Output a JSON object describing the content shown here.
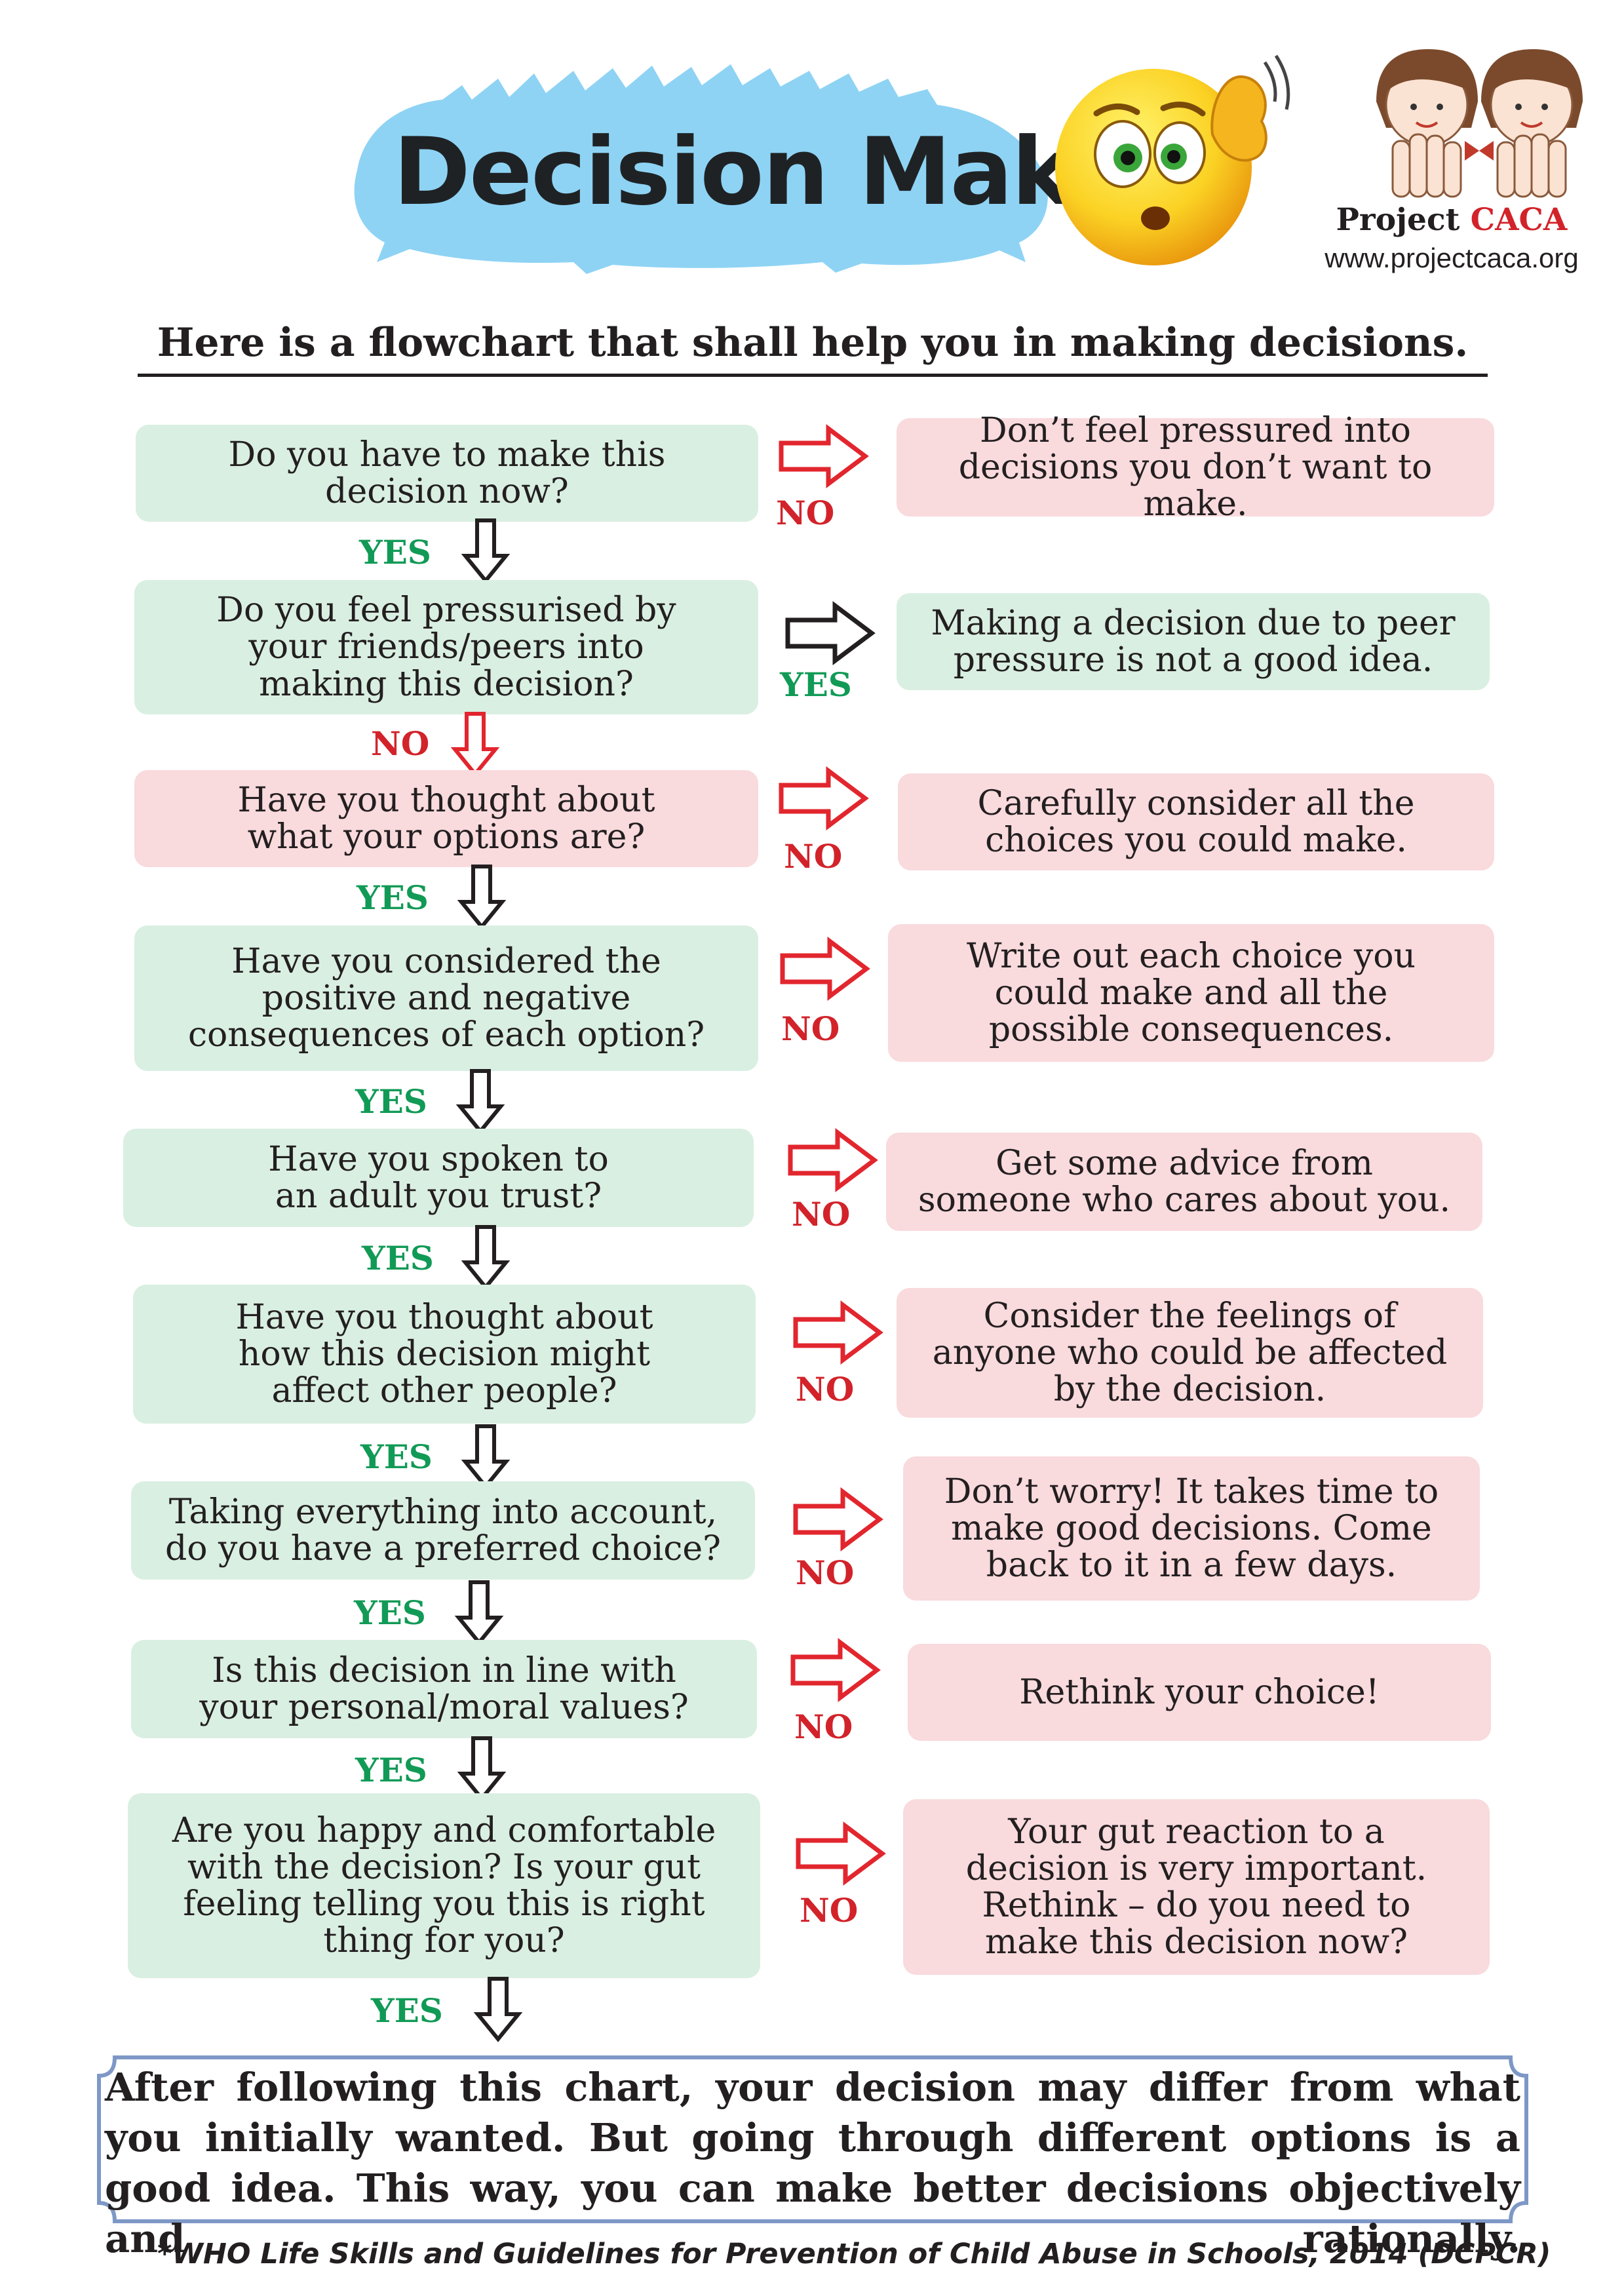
{
  "header": {
    "title": "Decision Making",
    "subtitle": "Here is a flowchart that shall help you in making decisions.",
    "logo": {
      "name_prefix": "Project ",
      "name_highlight": "CACA",
      "url": "www.projectcaca.org"
    },
    "icons": [
      "confused-emoji-icon",
      "project-caca-logo-icon"
    ]
  },
  "colors": {
    "green_box": "#d9efe2",
    "pink_box": "#f9dadd",
    "yes_label": "#119a56",
    "no_label": "#d2232a",
    "arrow_red": "#e2262e",
    "arrow_black": "#231f20",
    "splash_blue": "#8ed3f4",
    "frame_blue": "#7e98c6"
  },
  "steps": [
    {
      "question": "Do you have to make this\ndecision now?",
      "question_style": "green",
      "branch_label": "NO",
      "branch_color": "red",
      "advice": "Don’t feel pressured into\ndecisions you don’t want to make.",
      "advice_style": "pink",
      "next_label": "YES",
      "next_color": "black"
    },
    {
      "question": "Do you feel pressurised by\nyour friends/peers into\nmaking this decision?",
      "question_style": "green",
      "branch_label": "YES",
      "branch_color": "black",
      "advice": "Making a decision due to peer\npressure is not a good idea.",
      "advice_style": "green",
      "next_label": "NO",
      "next_color": "red"
    },
    {
      "question": "Have you thought about\nwhat your options are?",
      "question_style": "pink",
      "branch_label": "NO",
      "branch_color": "red",
      "advice": "Carefully consider all the\nchoices you could make.",
      "advice_style": "pink",
      "next_label": "YES",
      "next_color": "black"
    },
    {
      "question": "Have you considered the\npositive and negative\nconsequences of each option?",
      "question_style": "green",
      "branch_label": "NO",
      "branch_color": "red",
      "advice": "Write out each choice you\ncould make and all the\npossible consequences.",
      "advice_style": "pink",
      "next_label": "YES",
      "next_color": "black"
    },
    {
      "question": "Have you spoken to\nan adult you trust?",
      "question_style": "green",
      "branch_label": "NO",
      "branch_color": "red",
      "advice": "Get some advice from\nsomeone who cares about you.",
      "advice_style": "pink",
      "next_label": "YES",
      "next_color": "black"
    },
    {
      "question": "Have you thought about\nhow this decision might\naffect other people?",
      "question_style": "green",
      "branch_label": "NO",
      "branch_color": "red",
      "advice": "Consider the feelings of\nanyone who could be affected\nby the decision.",
      "advice_style": "pink",
      "next_label": "YES",
      "next_color": "black"
    },
    {
      "question": "Taking everything into account,\ndo you have a preferred choice?",
      "question_style": "green",
      "branch_label": "NO",
      "branch_color": "red",
      "advice": "Don’t worry! It takes time to\nmake good decisions. Come\nback to it in a few days.",
      "advice_style": "pink",
      "next_label": "YES",
      "next_color": "black"
    },
    {
      "question": "Is this decision in line with\nyour personal/moral values?",
      "question_style": "green",
      "branch_label": "NO",
      "branch_color": "red",
      "advice": "Rethink your choice!",
      "advice_style": "pink",
      "next_label": "YES",
      "next_color": "black"
    },
    {
      "question": "Are you happy and comfortable\nwith the decision? Is your gut\nfeeling telling you this is right\nthing for you?",
      "question_style": "green",
      "branch_label": "NO",
      "branch_color": "red",
      "advice": "Your gut reaction to a\ndecision is very important.\nRethink – do you need to\nmake this decision now?",
      "advice_style": "pink",
      "next_label": "YES",
      "next_color": "black"
    }
  ],
  "conclusion": "After following this chart, your decision may differ from what you initially wanted. But going through different options is a good idea. This way, you can make better decisions objectively and rationally.",
  "footnote": "*WHO Life Skills and Guidelines for Prevention of Child Abuse in Schools, 2014 (DCPCR)"
}
